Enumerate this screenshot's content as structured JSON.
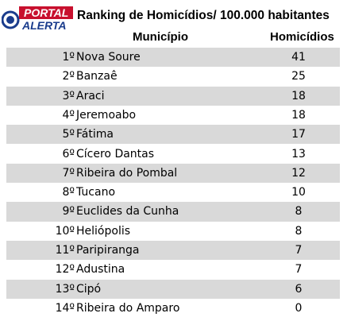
{
  "logo": {
    "line1": "PORTAL",
    "line2": "ALERTA"
  },
  "title": "Ranking de Homicídios/ 100.000 habitantes",
  "table": {
    "headers": [
      "Município",
      "Homicídios"
    ],
    "rows": [
      [
        "1º",
        "Nova Soure",
        41
      ],
      [
        "2º",
        "Banzaê",
        25
      ],
      [
        "3º",
        "Araci",
        18
      ],
      [
        "4º",
        "Jeremoabo",
        18
      ],
      [
        "5º",
        "Fátima",
        17
      ],
      [
        "6º",
        "Cícero Dantas",
        13
      ],
      [
        "7º",
        "Ribeira do Pombal",
        12
      ],
      [
        "8º",
        "Tucano",
        10
      ],
      [
        "9º",
        "Euclides da Cunha",
        8
      ],
      [
        "10º",
        "Heliópolis",
        8
      ],
      [
        "11º",
        "Paripiranga",
        7
      ],
      [
        "12º",
        "Adustina",
        7
      ],
      [
        "13º",
        "Cipó",
        6
      ],
      [
        "14º",
        "Ribeira do Amparo",
        0
      ]
    ]
  }
}
